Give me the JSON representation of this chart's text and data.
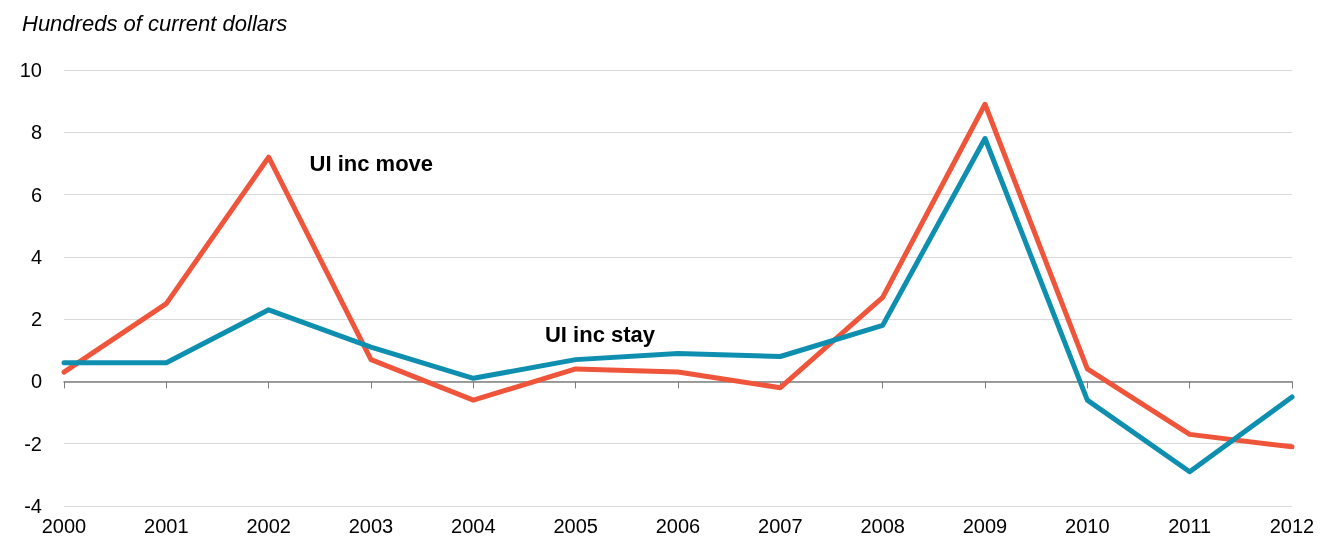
{
  "chart_data": {
    "type": "line",
    "ylabel": "Hundreds of current dollars",
    "x": [
      2000,
      2001,
      2002,
      2003,
      2004,
      2005,
      2006,
      2007,
      2008,
      2009,
      2010,
      2011,
      2012
    ],
    "xlim": [
      2000,
      2012
    ],
    "xticks": [
      2000,
      2001,
      2002,
      2003,
      2004,
      2005,
      2006,
      2007,
      2008,
      2009,
      2010,
      2011,
      2012
    ],
    "ylim": [
      -4,
      10
    ],
    "yticks": [
      -4,
      -2,
      0,
      2,
      4,
      6,
      8,
      10
    ],
    "grid": "y",
    "marker": "none",
    "line_style": "solid",
    "series": [
      {
        "name": "UI inc move",
        "color": "#ef553b",
        "values": [
          0.3,
          2.5,
          7.2,
          0.7,
          -0.6,
          0.4,
          0.3,
          -0.2,
          2.7,
          8.9,
          0.4,
          -1.7,
          -2.1
        ]
      },
      {
        "name": "UI inc stay",
        "color": "#0f8fb0",
        "values": [
          0.6,
          0.6,
          2.3,
          1.1,
          0.1,
          0.7,
          0.9,
          0.8,
          1.8,
          7.8,
          -0.6,
          -2.9,
          -0.5
        ]
      }
    ]
  }
}
